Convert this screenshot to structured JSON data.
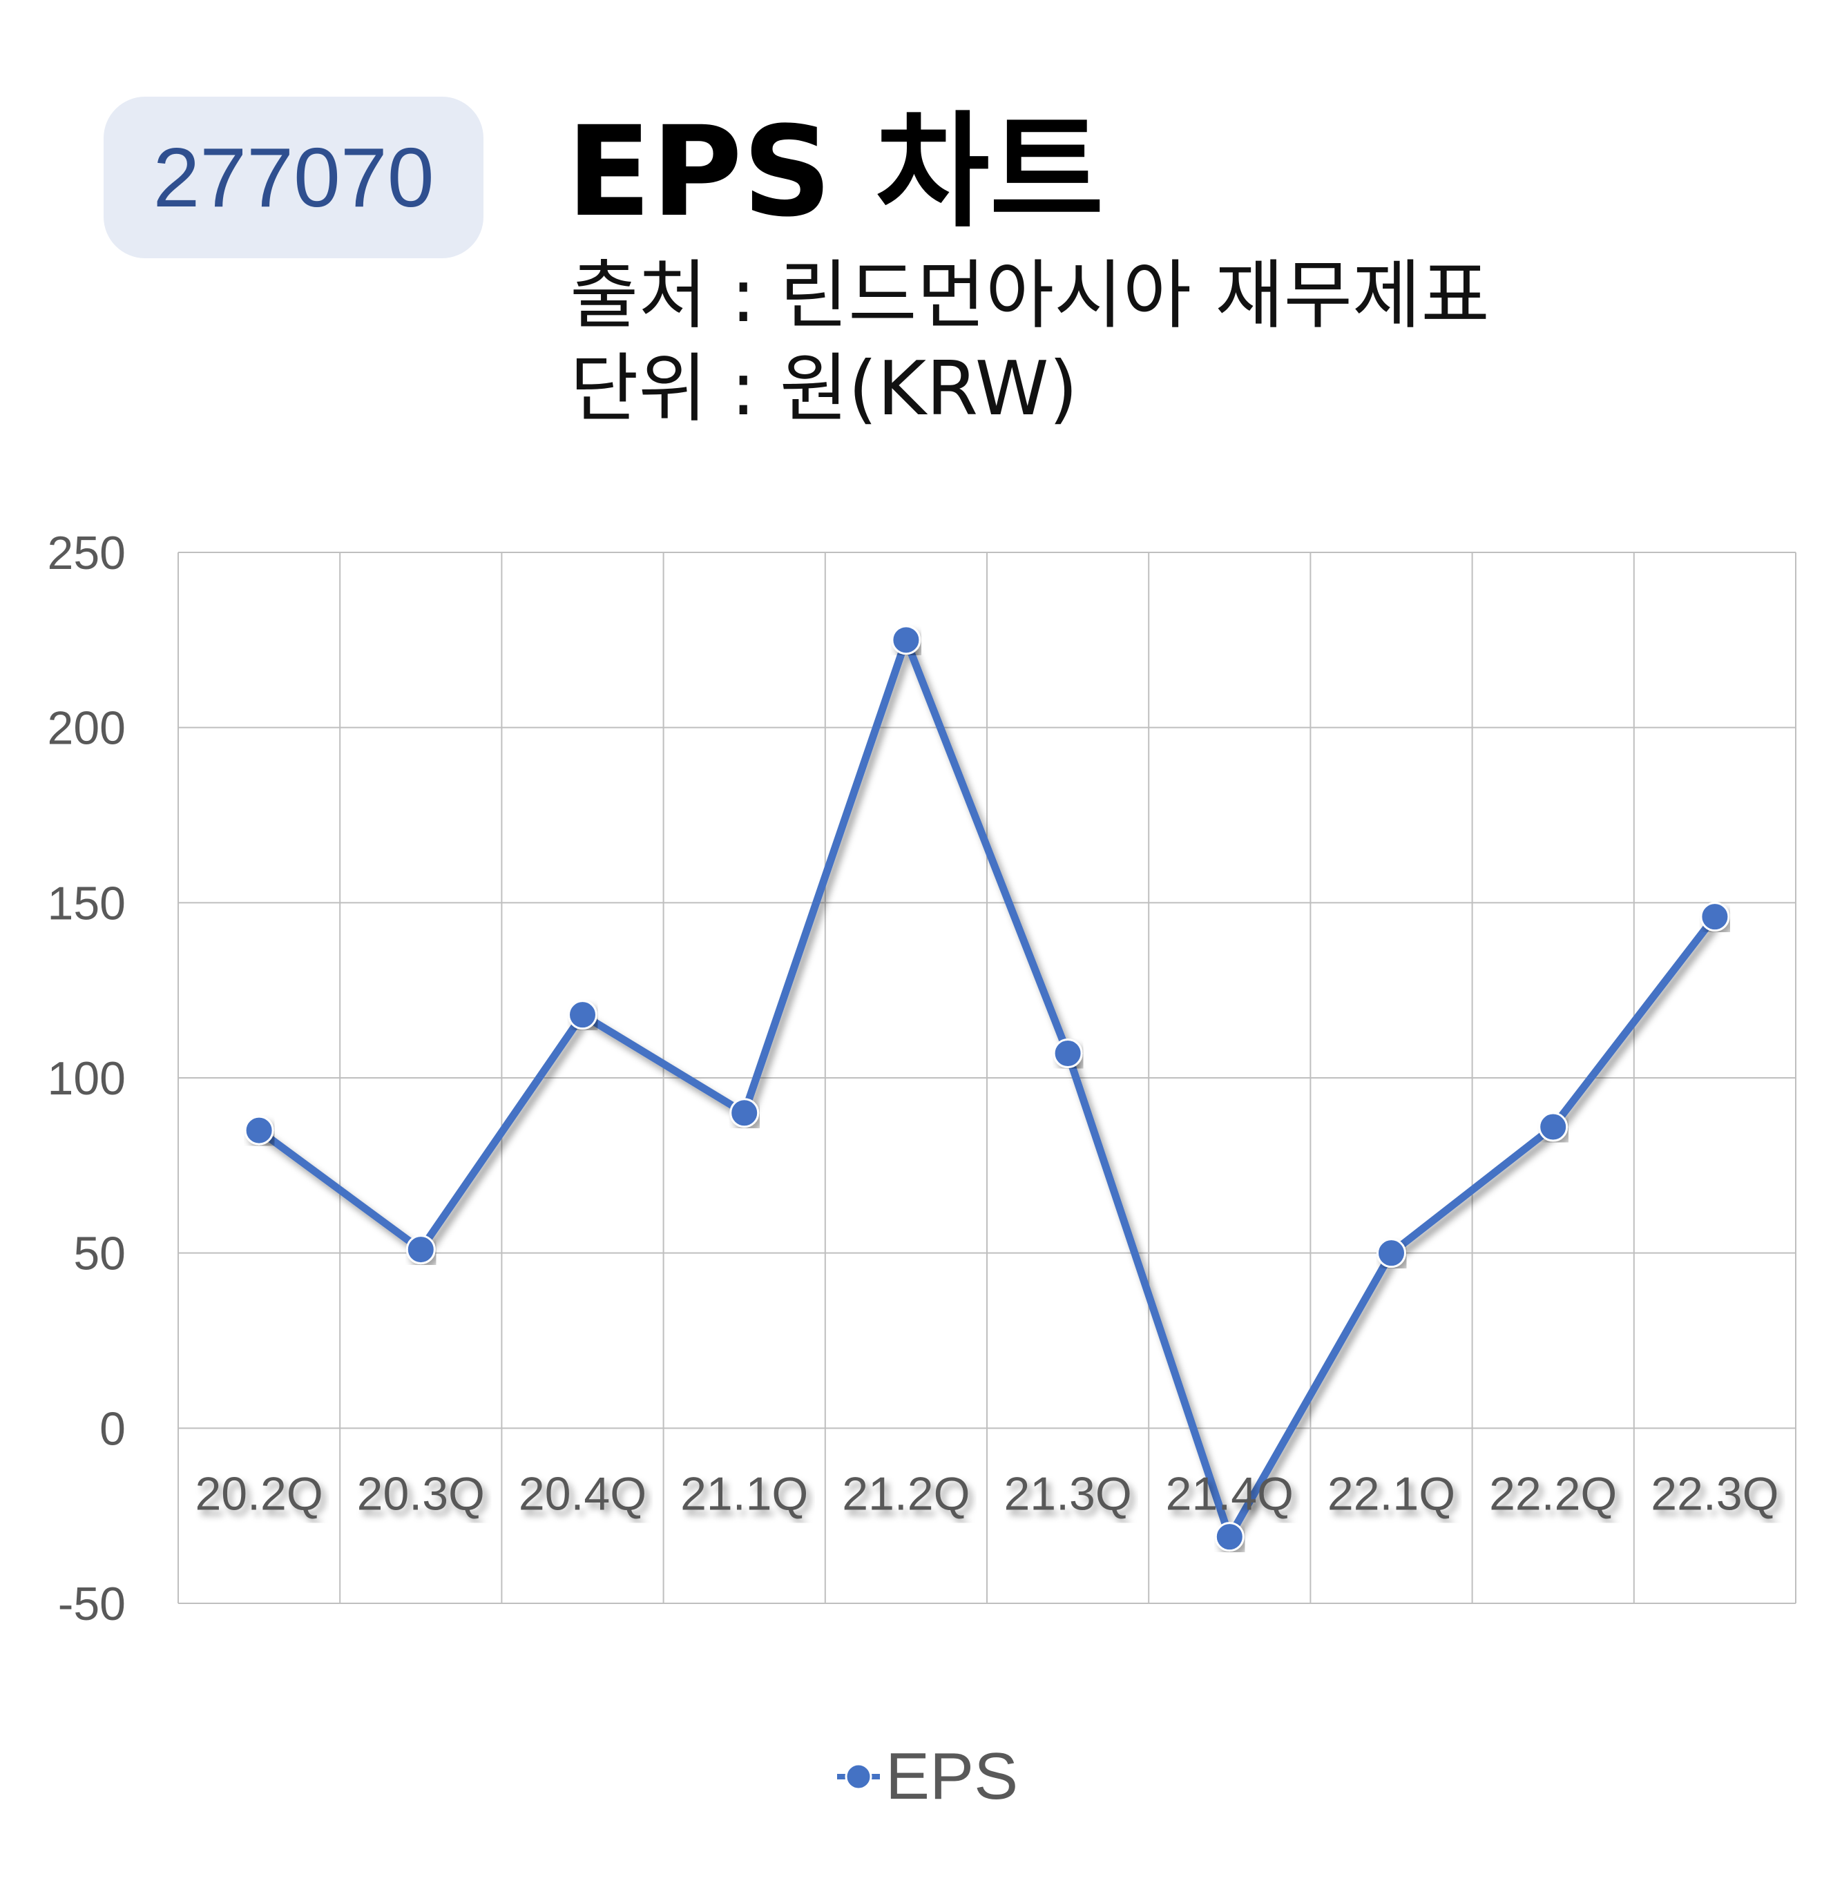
{
  "header": {
    "code": "277070",
    "title": "EPS 차트",
    "source": "출처 : 린드먼아시아 재무제표",
    "unit": "단위 : 원(KRW)"
  },
  "chart_data": {
    "type": "line",
    "categories": [
      "20.2Q",
      "20.3Q",
      "20.4Q",
      "21.1Q",
      "21.2Q",
      "21.3Q",
      "21.4Q",
      "22.1Q",
      "22.2Q",
      "22.3Q"
    ],
    "series": [
      {
        "name": "EPS",
        "values": [
          85,
          51,
          118,
          90,
          225,
          107,
          -31,
          50,
          86,
          146
        ]
      }
    ],
    "y_ticks": [
      "250",
      "200",
      "150",
      "100",
      "50",
      "0",
      "-50"
    ],
    "ylim": [
      -50,
      250
    ],
    "grid": true,
    "legend": "bottom",
    "colors": {
      "line": "#4472c4",
      "grid": "#bfbfbf",
      "tick": "#595959"
    }
  }
}
